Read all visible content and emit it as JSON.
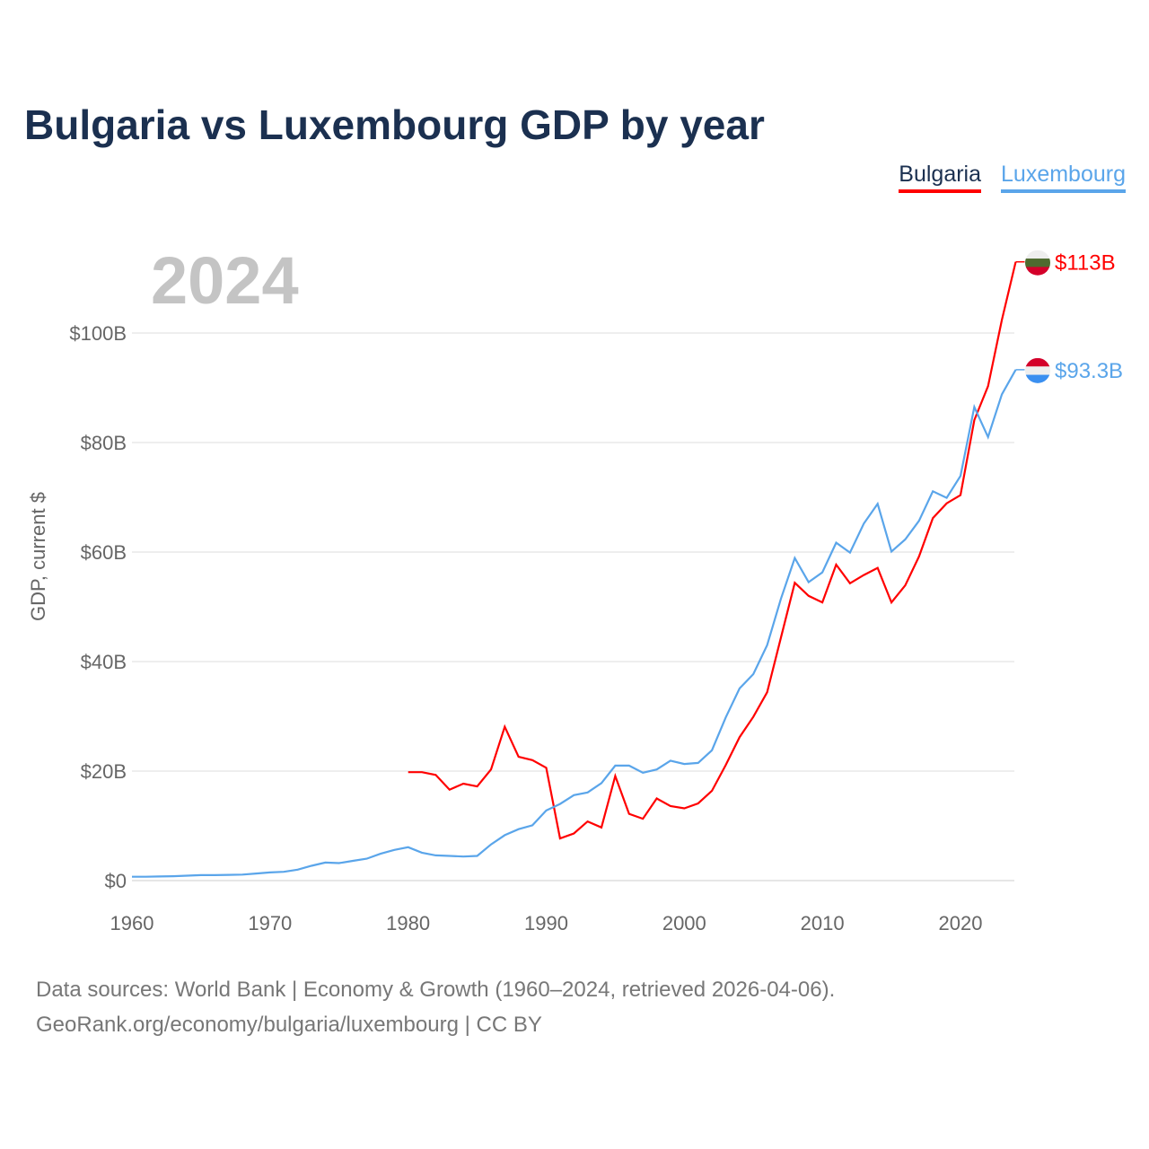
{
  "chart_data": {
    "type": "line",
    "title": "Bulgaria vs Luxembourg GDP by year",
    "ylabel": "GDP, current $",
    "xlabel": "",
    "year_label": "2024",
    "xlim": [
      1960,
      2024
    ],
    "ylim": [
      0,
      113
    ],
    "x_ticks": [
      1960,
      1970,
      1980,
      1990,
      2000,
      2010,
      2020
    ],
    "y_ticks": [
      0,
      20,
      40,
      60,
      80,
      100
    ],
    "y_tick_labels": [
      "$0",
      "$20B",
      "$40B",
      "$60B",
      "$80B",
      "$100B"
    ],
    "grid": true,
    "legend_placement": "top-right",
    "series": [
      {
        "name": "Bulgaria",
        "color": "#ff0000",
        "end_label": "$113B",
        "x": [
          1980,
          1981,
          1982,
          1983,
          1984,
          1985,
          1986,
          1987,
          1988,
          1989,
          1990,
          1991,
          1992,
          1993,
          1994,
          1995,
          1996,
          1997,
          1998,
          1999,
          2000,
          2001,
          2002,
          2003,
          2004,
          2005,
          2006,
          2007,
          2008,
          2009,
          2010,
          2011,
          2012,
          2013,
          2014,
          2015,
          2016,
          2017,
          2018,
          2019,
          2020,
          2021,
          2022,
          2023,
          2024
        ],
        "values": [
          19.8,
          19.8,
          19.3,
          16.6,
          17.7,
          17.2,
          20.3,
          28.1,
          22.6,
          22.0,
          20.6,
          7.7,
          8.6,
          10.8,
          9.7,
          19.1,
          12.2,
          11.3,
          15.0,
          13.6,
          13.2,
          14.1,
          16.4,
          21.1,
          26.2,
          29.9,
          34.4,
          44.4,
          54.4,
          52.0,
          50.8,
          57.7,
          54.3,
          55.8,
          57.1,
          50.8,
          53.9,
          59.2,
          66.2,
          68.9,
          70.4,
          84.1,
          90.3,
          102.4,
          113.0
        ]
      },
      {
        "name": "Luxembourg",
        "color": "#5aa5ea",
        "end_label": "$93.3B",
        "x": [
          1960,
          1961,
          1962,
          1963,
          1964,
          1965,
          1966,
          1967,
          1968,
          1969,
          1970,
          1971,
          1972,
          1973,
          1974,
          1975,
          1976,
          1977,
          1978,
          1979,
          1980,
          1981,
          1982,
          1983,
          1984,
          1985,
          1986,
          1987,
          1988,
          1989,
          1990,
          1991,
          1992,
          1993,
          1994,
          1995,
          1996,
          1997,
          1998,
          1999,
          2000,
          2001,
          2002,
          2003,
          2004,
          2005,
          2006,
          2007,
          2008,
          2009,
          2010,
          2011,
          2012,
          2013,
          2014,
          2015,
          2016,
          2017,
          2018,
          2019,
          2020,
          2021,
          2022,
          2023,
          2024
        ],
        "values": [
          0.7,
          0.7,
          0.75,
          0.8,
          0.9,
          1.0,
          1.0,
          1.05,
          1.1,
          1.3,
          1.5,
          1.6,
          2.0,
          2.7,
          3.3,
          3.2,
          3.6,
          4.0,
          4.9,
          5.6,
          6.1,
          5.1,
          4.6,
          4.5,
          4.4,
          4.5,
          6.6,
          8.3,
          9.4,
          10.1,
          12.8,
          14.0,
          15.6,
          16.1,
          17.8,
          21.0,
          21.0,
          19.7,
          20.3,
          21.9,
          21.3,
          21.5,
          23.8,
          29.8,
          35.1,
          37.7,
          43.0,
          51.5,
          58.9,
          54.5,
          56.3,
          61.7,
          59.9,
          65.2,
          68.8,
          60.1,
          62.3,
          65.7,
          71.1,
          69.9,
          73.9,
          86.5,
          81.0,
          88.8,
          93.3
        ]
      }
    ]
  },
  "footer": {
    "line1": "Data sources: World Bank | Economy & Growth (1960–2024, retrieved 2026-04-06).",
    "line2": "GeoRank.org/economy/bulgaria/luxembourg | CC BY"
  }
}
